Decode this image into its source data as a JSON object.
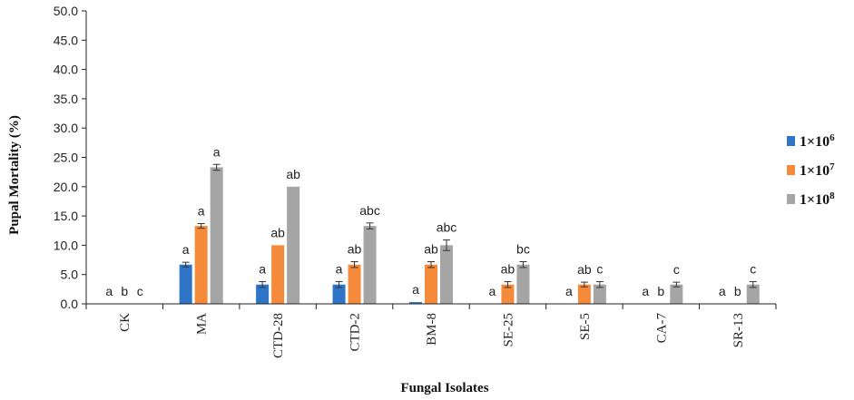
{
  "chart_data": {
    "type": "bar",
    "xlabel": "Fungal Isolates",
    "ylabel": "Pupal Mortality (%)",
    "ylim": [
      0,
      50
    ],
    "yticks": [
      "0.0",
      "5.0",
      "10.0",
      "15.0",
      "20.0",
      "25.0",
      "30.0",
      "35.0",
      "40.0",
      "45.0",
      "50.0"
    ],
    "categories": [
      "CK",
      "MA",
      "CTD-28",
      "CTD-2",
      "BM-8",
      "SE-25",
      "SE-5",
      "CA-7",
      "SR-13"
    ],
    "legend_position": "right",
    "series": [
      {
        "name": "1×10⁶",
        "legend_base": "1×10",
        "legend_exp": "6",
        "color": "#2e75c8",
        "values": [
          0,
          6.7,
          3.3,
          3.3,
          0.3,
          0,
          0,
          0,
          0
        ],
        "errors": [
          0,
          0.4,
          0.5,
          0.5,
          0,
          0,
          0,
          0,
          0
        ],
        "letters": [
          "a",
          "a",
          "a",
          "a",
          "a",
          "a",
          "a",
          "a",
          "a"
        ]
      },
      {
        "name": "1×10⁷",
        "legend_base": "1×10",
        "legend_exp": "7",
        "color": "#f58b3a",
        "values": [
          0,
          13.3,
          10.0,
          6.7,
          6.7,
          3.3,
          3.3,
          0,
          0
        ],
        "errors": [
          0,
          0.4,
          0,
          0.5,
          0.5,
          0.5,
          0.4,
          0,
          0
        ],
        "letters": [
          "b",
          "a",
          "ab",
          "ab",
          "ab",
          "ab",
          "ab",
          "b",
          "b"
        ]
      },
      {
        "name": "1×10⁸",
        "legend_base": "1×10",
        "legend_exp": "8",
        "color": "#a5a5a5",
        "values": [
          0,
          23.3,
          20.0,
          13.3,
          10.0,
          6.7,
          3.3,
          3.3,
          3.3
        ],
        "errors": [
          0,
          0.5,
          0,
          0.5,
          0.9,
          0.5,
          0.5,
          0.4,
          0.5
        ],
        "letters": [
          "c",
          "a",
          "ab",
          "abc",
          "abc",
          "bc",
          "c",
          "c",
          "c"
        ]
      }
    ]
  }
}
